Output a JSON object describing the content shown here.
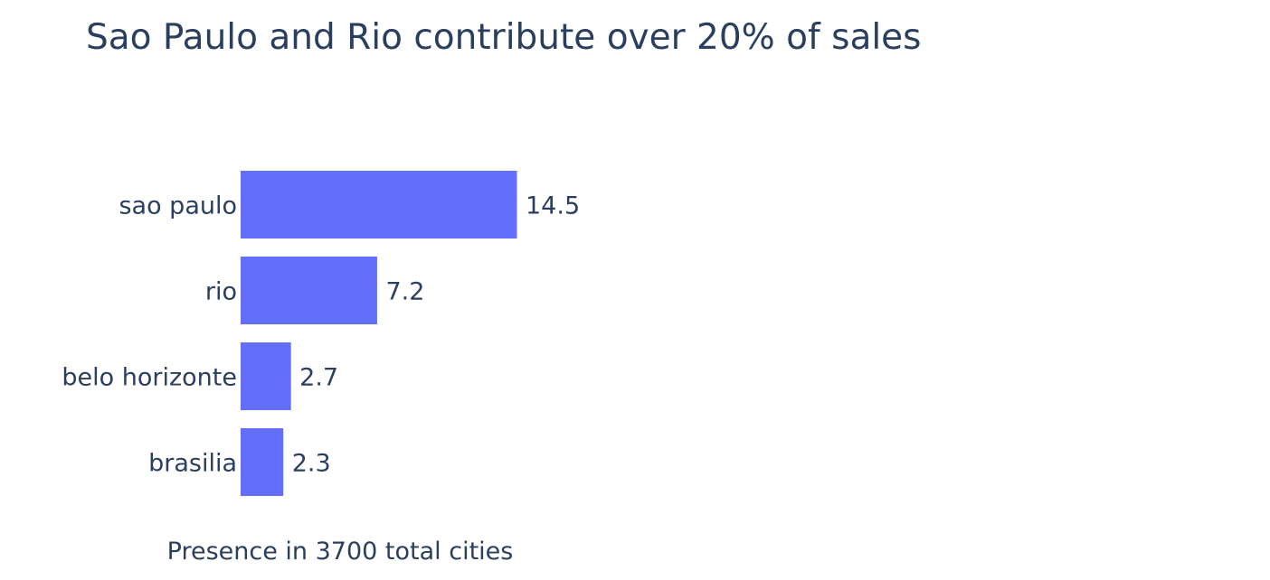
{
  "chart_data": {
    "type": "bar",
    "orientation": "horizontal",
    "title": "Sao Paulo and Rio contribute over 20% of sales",
    "xlabel": "Presence in 3700 total cities",
    "ylabel": "",
    "categories": [
      "sao paulo",
      "rio",
      "belo horizonte",
      "brasilia"
    ],
    "values": [
      14.5,
      7.2,
      2.7,
      2.3
    ],
    "value_labels": [
      "14.5",
      "7.2",
      "2.7",
      "2.3"
    ],
    "xlim": [
      0,
      52
    ],
    "grid": false,
    "legend": "none",
    "bar_color": "#636efa",
    "text_color": "#2a3f5f"
  }
}
